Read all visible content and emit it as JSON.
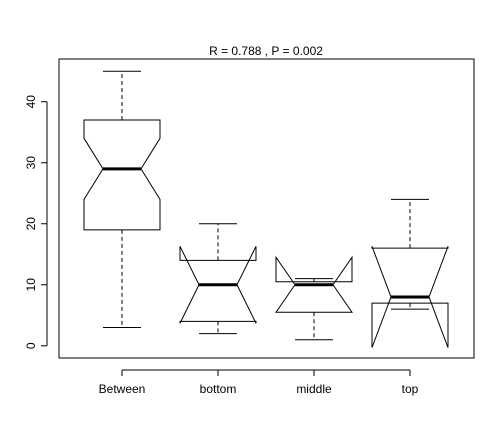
{
  "chart_data": {
    "type": "box",
    "title": "R =  0.788 ,  P =  0.002",
    "xlabel": "",
    "ylabel": "",
    "categories": [
      "Between",
      "bottom",
      "middle",
      "top"
    ],
    "ylim": [
      -2,
      47
    ],
    "yticks": [
      0,
      10,
      20,
      30,
      40
    ],
    "notched": true,
    "grid": false,
    "boxes": [
      {
        "category": "Between",
        "whisker_low": 3,
        "q1": 19,
        "notch_low": 24,
        "median": 29,
        "notch_high": 34,
        "q3": 37,
        "whisker_high": 45
      },
      {
        "category": "bottom",
        "whisker_low": 2,
        "q1": 4,
        "notch_low": 3.7,
        "median": 10,
        "notch_high": 16.3,
        "q3": 14,
        "whisker_high": 20
      },
      {
        "category": "middle",
        "whisker_low": 1,
        "q1": 5.5,
        "notch_low": 5.5,
        "median": 10,
        "notch_high": 14.5,
        "q3": 10.5,
        "whisker_high": 11
      },
      {
        "category": "top",
        "whisker_low": 6,
        "q1": 7,
        "notch_low": -0.3,
        "median": 8,
        "notch_high": 16.3,
        "q3": 16,
        "whisker_high": 24
      }
    ]
  }
}
